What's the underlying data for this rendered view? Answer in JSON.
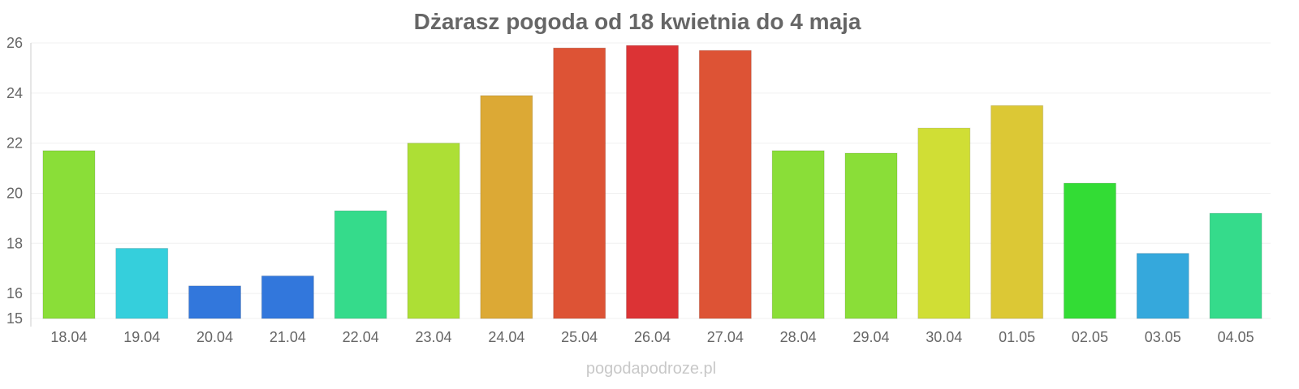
{
  "chart_data": {
    "type": "bar",
    "title": "Dżarasz pogoda od 18 kwietnia do 4 maja",
    "xlabel": "",
    "ylabel": "",
    "ylim": [
      15,
      26
    ],
    "yticks": [
      15,
      16,
      18,
      20,
      22,
      24,
      26
    ],
    "grid": true,
    "categories": [
      "18.04",
      "19.04",
      "20.04",
      "21.04",
      "22.04",
      "23.04",
      "24.04",
      "25.04",
      "26.04",
      "27.04",
      "28.04",
      "29.04",
      "30.04",
      "01.05",
      "02.05",
      "03.05",
      "04.05"
    ],
    "values": [
      21.7,
      17.8,
      16.3,
      16.7,
      19.3,
      22.0,
      23.9,
      25.8,
      25.9,
      25.7,
      21.7,
      21.6,
      22.6,
      23.5,
      20.4,
      17.6,
      19.2
    ],
    "colors": [
      "#8ade38",
      "#35cfdc",
      "#3277dc",
      "#3277dc",
      "#35db8b",
      "#addf35",
      "#dca935",
      "#dd5335",
      "#dc3335",
      "#dd5335",
      "#8ade38",
      "#8ade38",
      "#d0de35",
      "#dcc835",
      "#33dc35",
      "#35a8dc",
      "#35db8b"
    ]
  },
  "watermark": "pogodapodroze.pl"
}
